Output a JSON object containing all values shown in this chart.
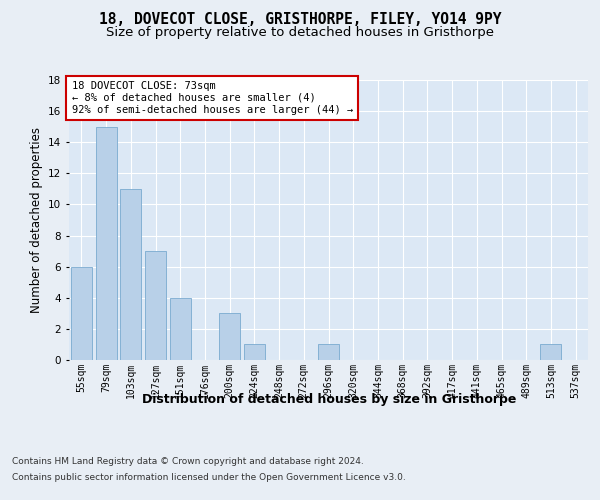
{
  "title1": "18, DOVECOT CLOSE, GRISTHORPE, FILEY, YO14 9PY",
  "title2": "Size of property relative to detached houses in Gristhorpe",
  "xlabel": "Distribution of detached houses by size in Gristhorpe",
  "ylabel": "Number of detached properties",
  "categories": [
    "55sqm",
    "79sqm",
    "103sqm",
    "127sqm",
    "151sqm",
    "176sqm",
    "200sqm",
    "224sqm",
    "248sqm",
    "272sqm",
    "296sqm",
    "320sqm",
    "344sqm",
    "368sqm",
    "392sqm",
    "417sqm",
    "441sqm",
    "465sqm",
    "489sqm",
    "513sqm",
    "537sqm"
  ],
  "values": [
    6,
    15,
    11,
    7,
    4,
    0,
    3,
    1,
    0,
    0,
    1,
    0,
    0,
    0,
    0,
    0,
    0,
    0,
    0,
    1,
    0
  ],
  "bar_color": "#b8d0e8",
  "bar_edge_color": "#7aaad0",
  "background_color": "#e8eef5",
  "plot_bg_color": "#dce8f5",
  "annotation_text": "18 DOVECOT CLOSE: 73sqm\n← 8% of detached houses are smaller (4)\n92% of semi-detached houses are larger (44) →",
  "annotation_box_color": "#ffffff",
  "annotation_border_color": "#cc0000",
  "footer1": "Contains HM Land Registry data © Crown copyright and database right 2024.",
  "footer2": "Contains public sector information licensed under the Open Government Licence v3.0.",
  "ylim": [
    0,
    18
  ],
  "title1_fontsize": 10.5,
  "title2_fontsize": 9.5,
  "xlabel_fontsize": 9,
  "ylabel_fontsize": 8.5,
  "tick_fontsize": 7,
  "annotation_fontsize": 7.5,
  "footer_fontsize": 6.5
}
